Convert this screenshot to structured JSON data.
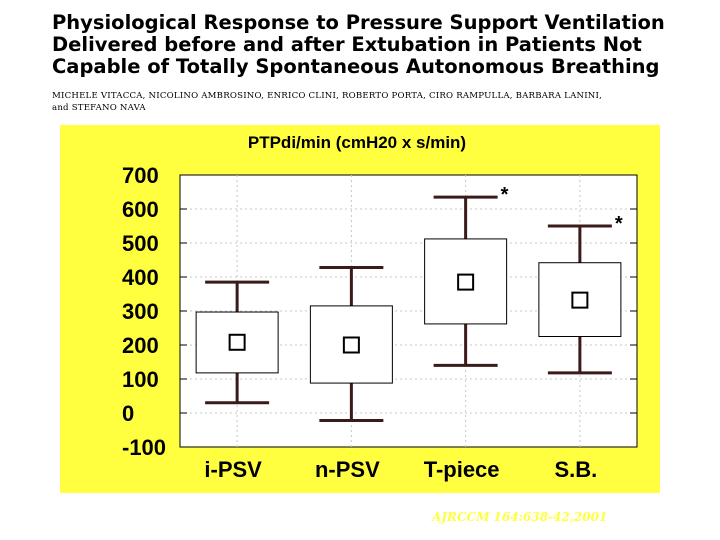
{
  "title_lines": [
    "Physiological Response to Pressure Support Ventilation",
    "Delivered before and after Extubation in Patients Not",
    "Capable of Totally Spontaneous Autonomous Breathing"
  ],
  "author_lines": [
    "MICHELE VITACCA, NICOLINO AMBROSINO, ENRICO CLINI, ROBERTO PORTA, CIRO RAMPULLA, BARBARA LANINI,",
    "and STEFANO NAVA"
  ],
  "citation": "AJRCCM 164:638-42,2001",
  "colors": {
    "panel_background": "#ffff40",
    "plot_background": "#ffffff",
    "box_fill": "#ffffff",
    "whisker": "#3b1a1a",
    "grid": "#c8c8c8",
    "citation_text": "#ffff40"
  },
  "chart_data": {
    "type": "box",
    "title": "PTPdi/min (cmH20 x s/min)",
    "xlabel": "",
    "ylabel": "",
    "ylim": [
      -100,
      700
    ],
    "yticks": [
      -100,
      0,
      100,
      200,
      300,
      400,
      500,
      600,
      700
    ],
    "grid": true,
    "categories": [
      "i-PSV",
      "n-PSV",
      "T-piece",
      "S.B."
    ],
    "series": [
      {
        "category": "i-PSV",
        "whisker_low": 30,
        "box_low": 118,
        "median_marker": 208,
        "box_high": 297,
        "whisker_high": 385,
        "annotation": ""
      },
      {
        "category": "n-PSV",
        "whisker_low": -22,
        "box_low": 88,
        "median_marker": 200,
        "box_high": 315,
        "whisker_high": 428,
        "annotation": ""
      },
      {
        "category": "T-piece",
        "whisker_low": 140,
        "box_low": 262,
        "median_marker": 385,
        "box_high": 512,
        "whisker_high": 635,
        "annotation": "*"
      },
      {
        "category": "S.B.",
        "whisker_low": 118,
        "box_low": 225,
        "median_marker": 332,
        "box_high": 442,
        "whisker_high": 550,
        "annotation": "*"
      }
    ]
  }
}
